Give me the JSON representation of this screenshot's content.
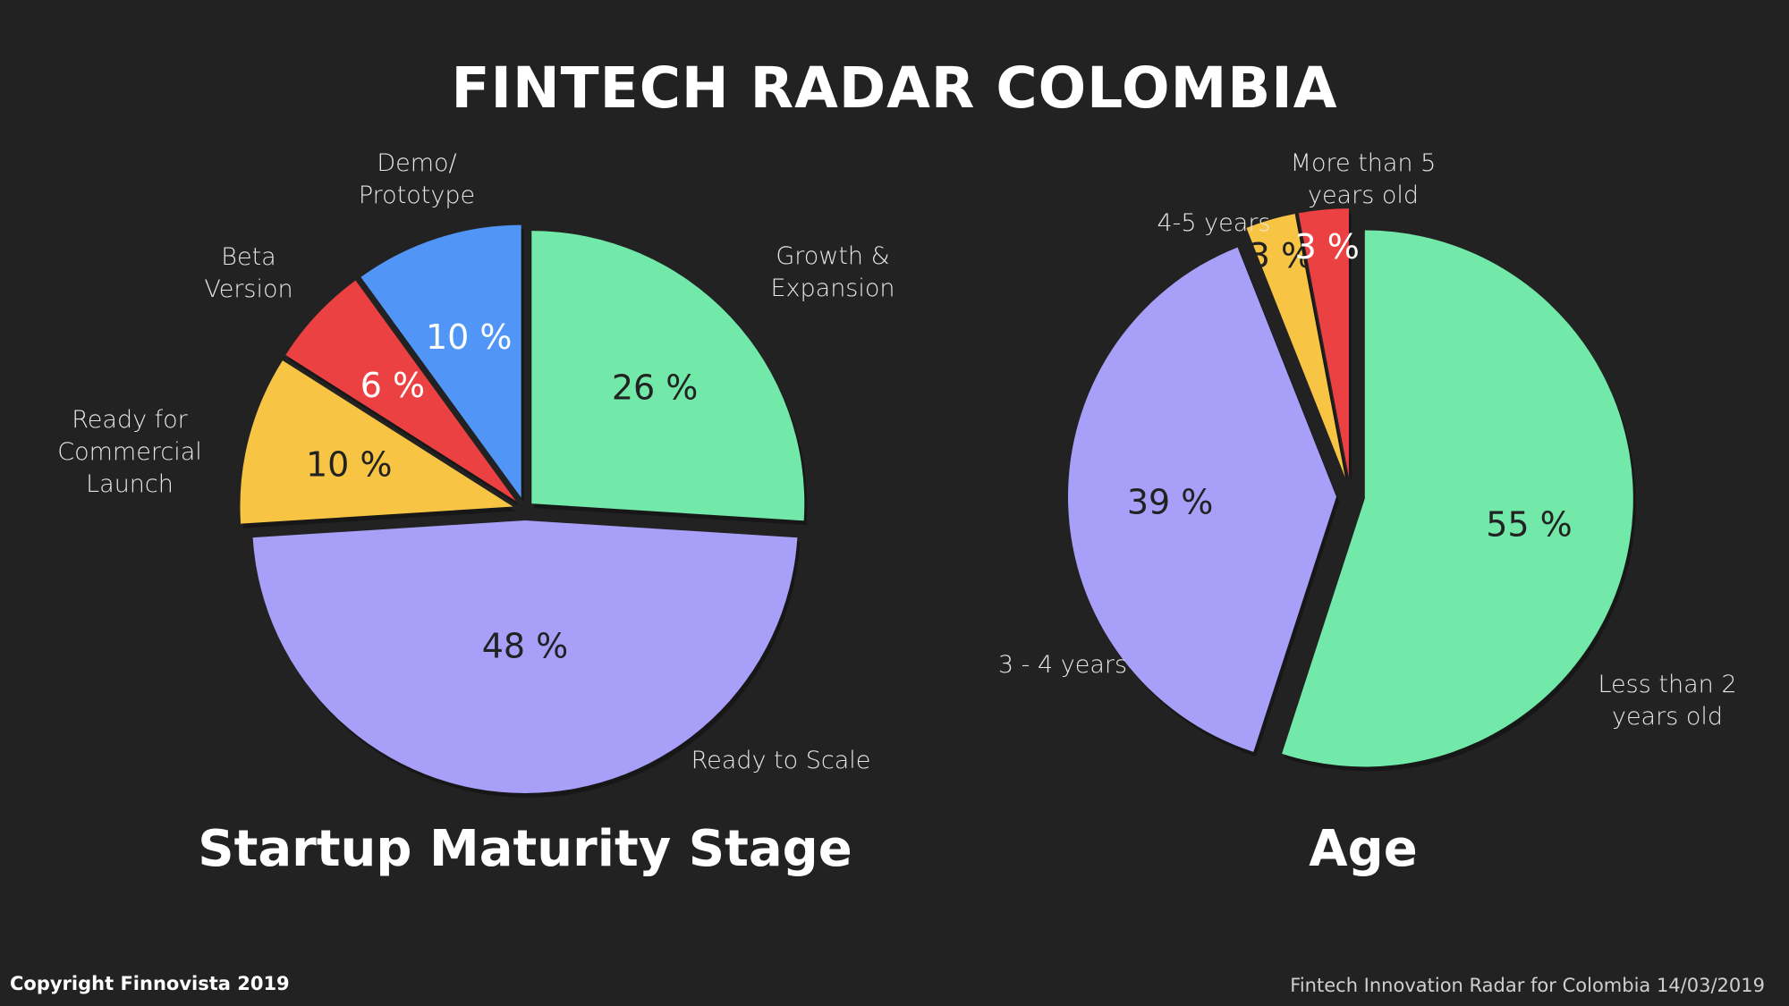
{
  "title": "FINTECH RADAR COLOMBIA",
  "footer": {
    "copyright": "Copyright Finnovista 2019",
    "note": "Fintech Innovation Radar for  Colombia 14/03/2019"
  },
  "chart_data": [
    {
      "type": "pie",
      "title": "Startup Maturity Stage",
      "slices": [
        {
          "label": "Growth & Expansion",
          "label_lines": [
            "Growth &",
            "Expansion"
          ],
          "value": 26,
          "display": "26 %",
          "color": "#72e8a9"
        },
        {
          "label": "Ready to Scale",
          "label_lines": [
            "Ready to Scale"
          ],
          "value": 48,
          "display": "48 %",
          "color": "#a89ff8"
        },
        {
          "label": "Ready for Commercial Launch",
          "label_lines": [
            "Ready for",
            "Commercial",
            "Launch"
          ],
          "value": 10,
          "display": "10 %",
          "color": "#f7c444"
        },
        {
          "label": "Beta Version",
          "label_lines": [
            "Beta",
            "Version"
          ],
          "value": 6,
          "display": "6 %",
          "color": "#ec4142"
        },
        {
          "label": "Demo/ Prototype",
          "label_lines": [
            "Demo/",
            "Prototype"
          ],
          "value": 10,
          "display": "10 %",
          "color": "#5196f7"
        }
      ]
    },
    {
      "type": "pie",
      "title": "Age",
      "slices": [
        {
          "label": "Less than 2 years old",
          "label_lines": [
            "Less than 2",
            "years old"
          ],
          "value": 55,
          "display": "55 %",
          "color": "#72e8a9"
        },
        {
          "label": "3 - 4 years",
          "label_lines": [
            "3 - 4 years"
          ],
          "value": 39,
          "display": "39 %",
          "color": "#a89ff8"
        },
        {
          "label": "4-5 years",
          "label_lines": [
            "4-5 years"
          ],
          "value": 3,
          "display": "3 %",
          "color": "#f7c444"
        },
        {
          "label": "More than 5 years old",
          "label_lines": [
            "More than 5",
            "years old"
          ],
          "value": 3,
          "display": "3 %",
          "color": "#ec4142"
        }
      ]
    }
  ]
}
